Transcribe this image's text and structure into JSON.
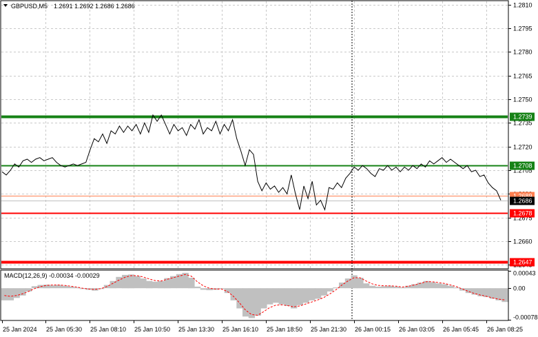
{
  "header": {
    "symbol": "GBPUSD,M5",
    "ohlc": "1.2691 1.2692 1.2686 1.2686"
  },
  "macd": {
    "label": "MACD(12,26,9) -0.00034 -0.00029",
    "ticks": [
      "0.00043",
      "0.00",
      "-0.00078"
    ]
  },
  "colors": {
    "support_resistance_green": "#168216",
    "support_resistance_red": "#ff0000",
    "bid_line": "#c0c0c0",
    "ask_line": "#ff7f50",
    "histogram": "#c0c0c0",
    "signal_line": "#ff0000",
    "price_line": "#000000",
    "current_price_bg": "#000000"
  },
  "chart_data": [
    {
      "type": "line",
      "symbol": "GBPUSD",
      "timeframe": "M5",
      "ylim": [
        1.2643,
        1.2812
      ],
      "y_ticks": [
        "1.2810",
        "1.2795",
        "1.2780",
        "1.2765",
        "1.2750",
        "1.2735",
        "1.2720",
        "1.2705",
        "1.2690",
        "1.2675",
        "1.2660",
        "1.2645"
      ],
      "y_tick_values": [
        1.281,
        1.2795,
        1.278,
        1.2765,
        1.275,
        1.2735,
        1.272,
        1.2705,
        1.269,
        1.2675,
        1.266,
        1.2645
      ],
      "x_ticks": [
        "25 Jan 2024",
        "25 Jan 05:30",
        "25 Jan 08:10",
        "25 Jan 10:50",
        "25 Jan 13:30",
        "25 Jan 16:10",
        "25 Jan 18:50",
        "25 Jan 21:30",
        "26 Jan 00:15",
        "26 Jan 03:05",
        "26 Jan 05:45",
        "26 Jan 08:25"
      ],
      "grid": true,
      "levels": [
        {
          "value": 1.2739,
          "label": "1.2739",
          "color": "#168216",
          "bold": true
        },
        {
          "value": 1.2708,
          "label": "1.2708",
          "color": "#168216",
          "bold": false
        },
        {
          "value": 1.2689,
          "label": "1.2689",
          "color": "#ff7f50",
          "bold": false
        },
        {
          "value": 1.2678,
          "label": "1.2678",
          "color": "#ff0000",
          "bold": false
        },
        {
          "value": 1.2647,
          "label": "1.2647",
          "color": "#ff0000",
          "bold": true
        }
      ],
      "current_price": {
        "value": 1.2686,
        "label": "1.2686"
      },
      "series": [
        {
          "values": [
            1.2704,
            1.2702,
            1.2705,
            1.2709,
            1.2707,
            1.2711,
            1.2712,
            1.271,
            1.2712,
            1.2713,
            1.2711,
            1.2712,
            1.2713,
            1.271,
            1.2708,
            1.2707,
            1.2708,
            1.2709,
            1.2708,
            1.2709,
            1.271,
            1.2718,
            1.2725,
            1.2723,
            1.2728,
            1.2722,
            1.273,
            1.2728,
            1.2733,
            1.2729,
            1.2733,
            1.273,
            1.2734,
            1.2728,
            1.2735,
            1.2729,
            1.274,
            1.2736,
            1.274,
            1.2734,
            1.2728,
            1.2734,
            1.273,
            1.2732,
            1.2727,
            1.2734,
            1.2731,
            1.2737,
            1.2728,
            1.2732,
            1.273,
            1.2736,
            1.2728,
            1.2734,
            1.273,
            1.2737,
            1.2725,
            1.2717,
            1.2708,
            1.2718,
            1.2715,
            1.2698,
            1.2692,
            1.2697,
            1.2693,
            1.2695,
            1.2691,
            1.2694,
            1.269,
            1.2702,
            1.269,
            1.268,
            1.2695,
            1.2687,
            1.2698,
            1.2683,
            1.2686,
            1.268,
            1.2694,
            1.2693,
            1.2697,
            1.2694,
            1.27,
            1.2703,
            1.2707,
            1.2705,
            1.2708,
            1.2706,
            1.2703,
            1.2701,
            1.2706,
            1.2705,
            1.2708,
            1.2705,
            1.2707,
            1.2704,
            1.2707,
            1.2705,
            1.2708,
            1.2706,
            1.2709,
            1.2707,
            1.2711,
            1.2709,
            1.2711,
            1.2713,
            1.271,
            1.2712,
            1.271,
            1.2708,
            1.2706,
            1.2708,
            1.2704,
            1.2705,
            1.2701,
            1.2702,
            1.2697,
            1.2694,
            1.2692,
            1.2686
          ]
        }
      ]
    },
    {
      "type": "area",
      "name": "MACD(12,26,9)",
      "ylim": [
        -0.00078,
        0.00043
      ],
      "y_ticks": [
        "0.00043",
        "0.00",
        "-0.00078"
      ],
      "series": [
        {
          "kind": "histogram",
          "values": [
            -0.0003,
            -0.0003,
            -0.00024,
            -0.00018,
            -8e-05,
            5e-05,
            8e-05,
            9e-05,
            7e-05,
            8e-05,
            6e-05,
            4e-05,
            2e-05,
            -2e-05,
            -4e-05,
            -6e-05,
            -2e-05,
            8e-05,
            0.00018,
            0.00028,
            0.00033,
            0.00034,
            0.0003,
            0.00024,
            0.00018,
            0.00016,
            0.00018,
            0.00025,
            0.0003,
            0.00035,
            0.00038,
            0.00026,
            4e-05,
            -4e-05,
            -5e-05,
            -4e-05,
            -2e-05,
            -0.00012,
            -0.0003,
            -0.0005,
            -0.0007,
            -0.00074,
            -0.00068,
            -0.0005,
            -0.0004,
            -0.00036,
            -0.0004,
            -0.00044,
            -0.0005,
            -0.00042,
            -0.00036,
            -0.0003,
            -0.00026,
            -0.00018,
            -8e-05,
            2e-05,
            0.00014,
            0.00024,
            0.00032,
            0.00026,
            0.00012,
            6e-05,
            4e-05,
            5e-05,
            6e-05,
            4e-05,
            2e-05,
            6e-05,
            0.0001,
            0.00014,
            0.00018,
            0.00015,
            0.00012,
            0.0001,
            6e-05,
            2e-05,
            -6e-05,
            -0.00012,
            -0.00016,
            -0.0002,
            -0.00022,
            -0.00026,
            -0.0003,
            -0.00034
          ]
        },
        {
          "kind": "signal",
          "values": [
            -0.00018,
            -0.0002,
            -0.00018,
            -0.00014,
            -8e-05,
            -1e-05,
            4e-05,
            7e-05,
            8e-05,
            8e-05,
            7e-05,
            5e-05,
            3e-05,
            0.0,
            -2e-05,
            -3e-05,
            -1e-05,
            4e-05,
            0.00012,
            0.0002,
            0.00027,
            0.00031,
            0.00031,
            0.00028,
            0.00023,
            0.00019,
            0.00018,
            0.00022,
            0.00026,
            0.0003,
            0.00034,
            0.0003,
            0.00016,
            6e-05,
            0.0,
            -2e-05,
            -2e-05,
            -8e-05,
            -0.0002,
            -0.00036,
            -0.00054,
            -0.00065,
            -0.00067,
            -0.00058,
            -0.00048,
            -0.00042,
            -0.00041,
            -0.00043,
            -0.00046,
            -0.00044,
            -0.00039,
            -0.00034,
            -0.00029,
            -0.00023,
            -0.00014,
            -4e-05,
            8e-05,
            0.00018,
            0.00026,
            0.00026,
            0.00018,
            0.00011,
            7e-05,
            6e-05,
            6e-05,
            5e-05,
            3e-05,
            5e-05,
            8e-05,
            0.00012,
            0.00016,
            0.00016,
            0.00014,
            0.00012,
            8e-05,
            4e-05,
            -2e-05,
            -8e-05,
            -0.00013,
            -0.00017,
            -0.0002,
            -0.00024,
            -0.00027,
            -0.00029
          ]
        }
      ]
    }
  ]
}
